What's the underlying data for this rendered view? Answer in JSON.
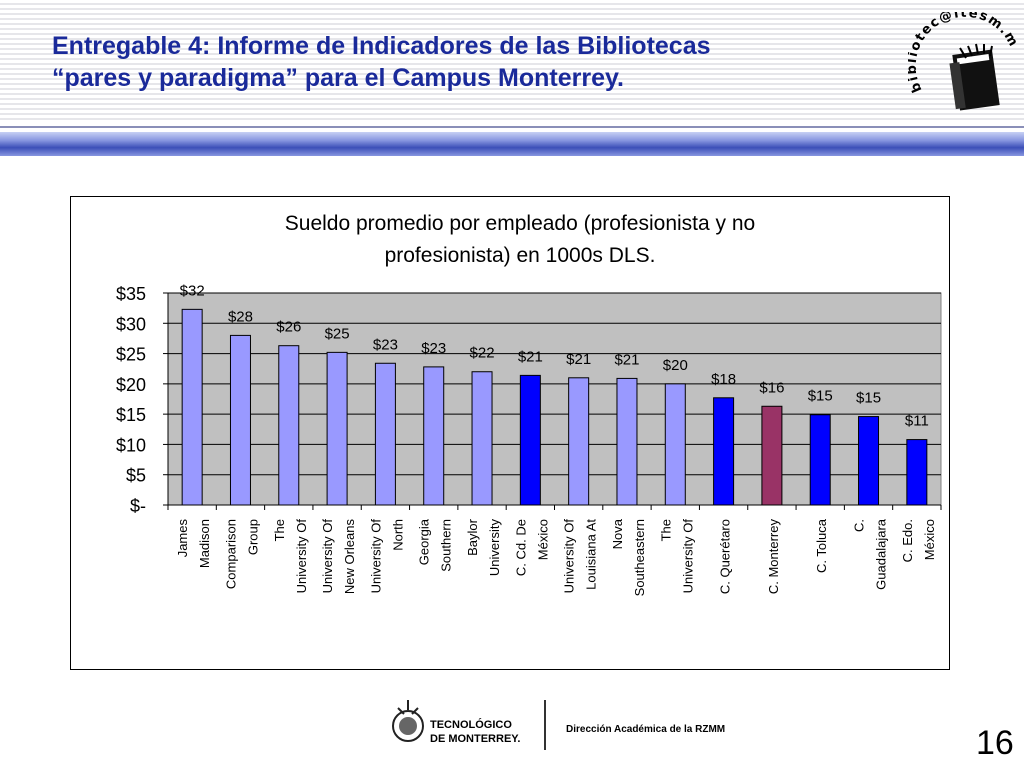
{
  "header": {
    "title_line1": "Entregable 4: Informe de Indicadores de las Bibliotecas",
    "title_line2": "“pares y paradigma” para el Campus Monterrey.",
    "logo_text": "bibliotec@itesm.mx"
  },
  "chart_data": {
    "type": "bar",
    "title_line1": "Sueldo promedio por empleado (profesionista y no",
    "title_line2": "profesionista) en 1000s DLS.",
    "xlabel": "",
    "ylabel": "",
    "ylim": [
      0,
      35
    ],
    "yticks": [
      {
        "value": 35,
        "label": "$35"
      },
      {
        "value": 30,
        "label": "$30"
      },
      {
        "value": 25,
        "label": "$25"
      },
      {
        "value": 20,
        "label": "$20"
      },
      {
        "value": 15,
        "label": "$15"
      },
      {
        "value": 10,
        "label": "$10"
      },
      {
        "value": 5,
        "label": "$5"
      },
      {
        "value": 0,
        "label": "$-"
      }
    ],
    "grid": true,
    "plot_background": "#c0c0c0",
    "categories": [
      [
        "James",
        "Madison"
      ],
      [
        "Comparison",
        "Group"
      ],
      [
        "The",
        "University Of"
      ],
      [
        "University Of",
        "New Orleans"
      ],
      [
        "University Of",
        "North"
      ],
      [
        "Georgia",
        "Southern"
      ],
      [
        "Baylor",
        "University"
      ],
      [
        "C. Cd. De",
        "México"
      ],
      [
        "University Of",
        "Louisiana At"
      ],
      [
        "Nova",
        "Southeastern"
      ],
      [
        "The",
        "University Of"
      ],
      [
        "C. Querétaro"
      ],
      [
        "C. Monterrey"
      ],
      [
        "C. Toluca"
      ],
      [
        "C.",
        "Guadalajara"
      ],
      [
        "C. Edo.",
        "México"
      ]
    ],
    "values": [
      32.3,
      28.0,
      26.3,
      25.2,
      23.4,
      22.8,
      22.0,
      21.4,
      21.0,
      20.9,
      20.0,
      17.7,
      16.3,
      14.9,
      14.6,
      10.8
    ],
    "value_labels": [
      "$32",
      "$28",
      "$26",
      "$25",
      "$23",
      "$23",
      "$22",
      "$21",
      "$21",
      "$21",
      "$20",
      "$18",
      "$16",
      "$15",
      "$15",
      "$11"
    ],
    "colors": [
      "#9999ff",
      "#9999ff",
      "#9999ff",
      "#9999ff",
      "#9999ff",
      "#9999ff",
      "#9999ff",
      "#0000ff",
      "#9999ff",
      "#9999ff",
      "#9999ff",
      "#0000ff",
      "#993366",
      "#0000ff",
      "#0000ff",
      "#0000ff"
    ]
  },
  "footer": {
    "institution_line1": "TECNOLÓGICO",
    "institution_line2": "DE MONTERREY.",
    "department": "Dirección Académica de la RZMM",
    "page_number": "16"
  }
}
